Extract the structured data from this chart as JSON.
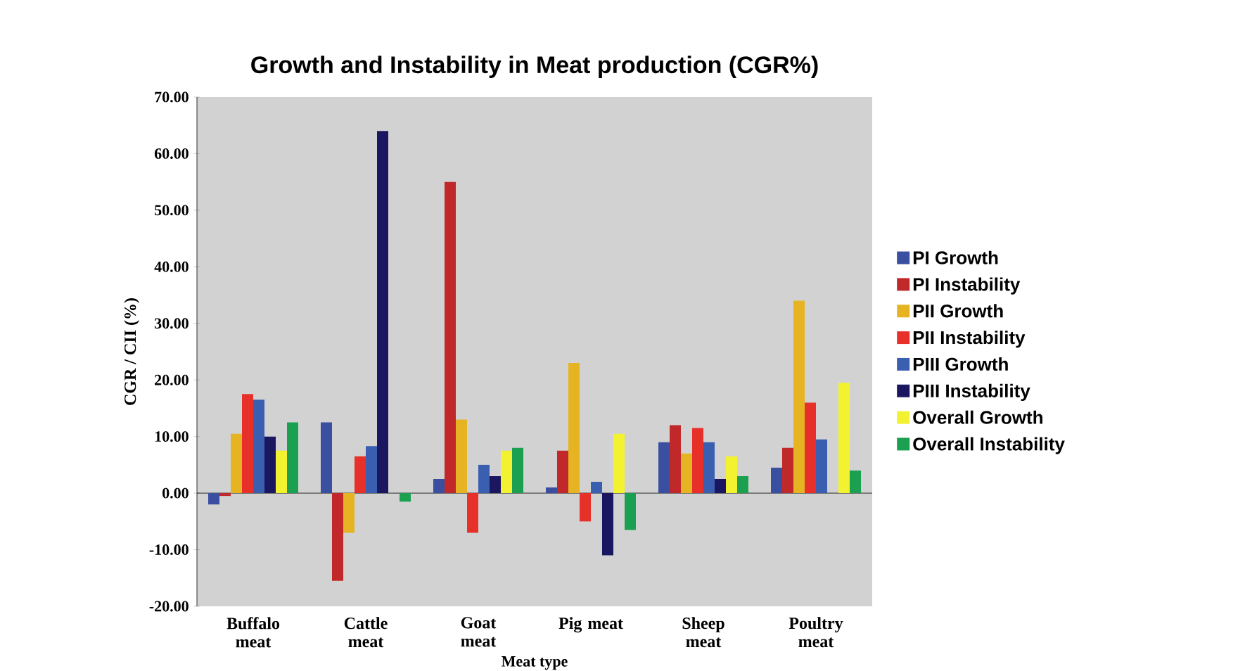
{
  "chart_data": {
    "type": "bar",
    "title": "Growth and Instability in Meat production (CGR%)",
    "xlabel": "Meat type",
    "ylabel": "CGR / CII (%)",
    "categories": [
      "Buffalo meat",
      "Cattle meat",
      "Goat meat",
      "Pig meat",
      "Sheep meat",
      "Poultry meat"
    ],
    "series": [
      {
        "name": "PI Growth",
        "color": "#3b4fa0",
        "values": [
          -2,
          12.5,
          2.5,
          1,
          9,
          4.5
        ]
      },
      {
        "name": "PI Instability",
        "color": "#c0282a",
        "values": [
          -0.5,
          -15.5,
          55,
          7.5,
          12,
          8
        ]
      },
      {
        "name": "PII Growth",
        "color": "#e6b422",
        "values": [
          10.5,
          -7,
          13,
          23,
          7,
          34
        ]
      },
      {
        "name": "PII Instability",
        "color": "#e8302a",
        "values": [
          17.5,
          6.5,
          -7,
          -5,
          11.5,
          16
        ]
      },
      {
        "name": "PIII Growth",
        "color": "#3a5fb0",
        "values": [
          16.5,
          8.3,
          5,
          2,
          9,
          9.5
        ]
      },
      {
        "name": "PIII Instability",
        "color": "#1a1760",
        "values": [
          10,
          64,
          3,
          -11,
          2.5,
          0
        ]
      },
      {
        "name": "Overall  Growth",
        "color": "#f2f230",
        "values": [
          7.5,
          0,
          7.5,
          10.5,
          6.5,
          19.5
        ]
      },
      {
        "name": "Overall  Instability",
        "color": "#1aa050",
        "values": [
          12.5,
          -1.5,
          8,
          -6.5,
          3,
          4
        ]
      }
    ],
    "ylim": [
      -20,
      70
    ],
    "yticks": [
      {
        "value": -20,
        "label": "-20.00"
      },
      {
        "value": -10,
        "label": "-10.00"
      },
      {
        "value": 0,
        "label": "0.00"
      },
      {
        "value": 10,
        "label": "10.00"
      },
      {
        "value": 20,
        "label": "20.00"
      },
      {
        "value": 30,
        "label": "30.00"
      },
      {
        "value": 40,
        "label": "40.00"
      },
      {
        "value": 50,
        "label": "50.00"
      },
      {
        "value": 60,
        "label": "60.00"
      },
      {
        "value": 70,
        "label": "70.00"
      }
    ],
    "legend": "right"
  }
}
